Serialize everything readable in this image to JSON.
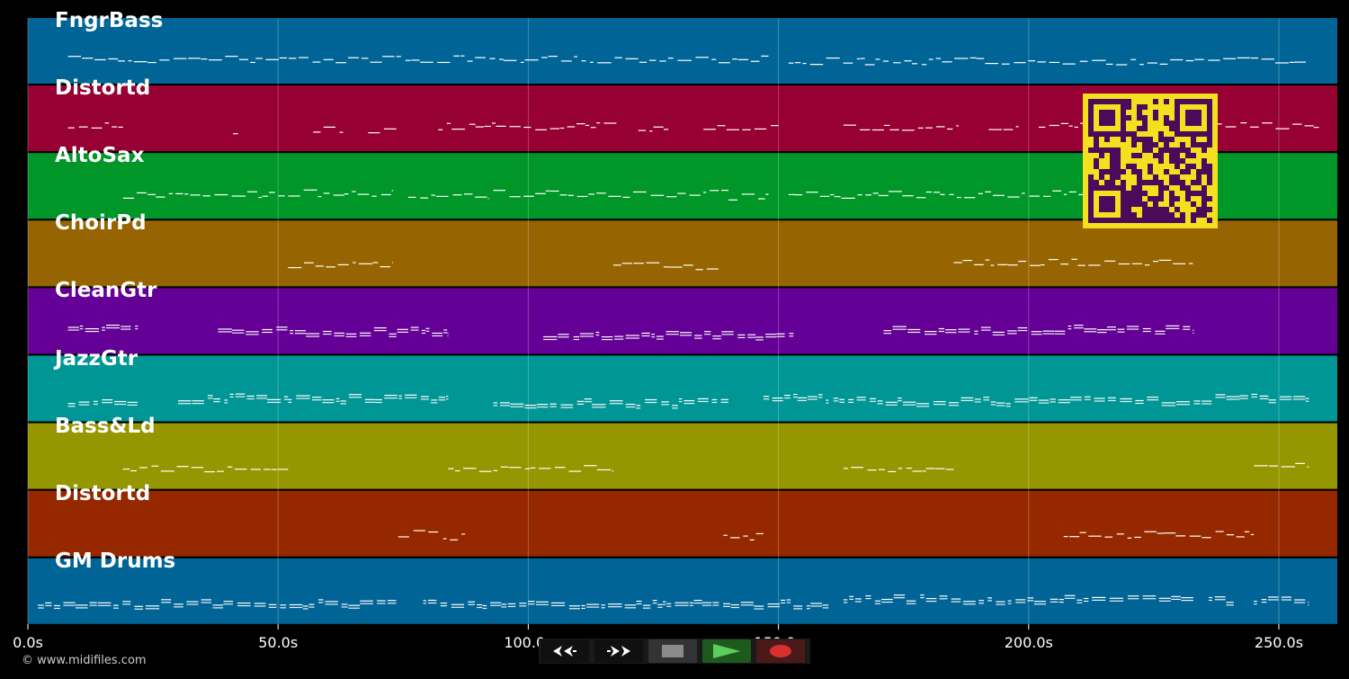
{
  "time_axis": {
    "unit": "s",
    "max": 261.7,
    "ticks": [
      {
        "value": 0,
        "label": "0.0s"
      },
      {
        "value": 50,
        "label": "50.0s"
      },
      {
        "value": 100,
        "label": "100.0s"
      },
      {
        "value": 150,
        "label": "150.0s"
      },
      {
        "value": 200,
        "label": "200.0s"
      },
      {
        "value": 250,
        "label": "250.0s"
      }
    ]
  },
  "tracks": [
    {
      "name": "FngrBass",
      "color": "#006496",
      "notes": [
        [
          8,
          18
        ],
        [
          18,
          148
        ],
        [
          152,
          256
        ]
      ]
    },
    {
      "name": "Distortd",
      "color": "#960032",
      "notes": [
        [
          8,
          19
        ],
        [
          41,
          42
        ],
        [
          57,
          63
        ],
        [
          68,
          74
        ],
        [
          82,
          118
        ],
        [
          122,
          128
        ],
        [
          135,
          150
        ],
        [
          163,
          186
        ],
        [
          192,
          198
        ],
        [
          202,
          258
        ]
      ]
    },
    {
      "name": "AltoSax",
      "color": "#009628",
      "notes": [
        [
          19,
          52
        ],
        [
          52,
          73
        ],
        [
          76,
          92
        ],
        [
          93,
          140
        ],
        [
          140,
          148
        ],
        [
          152,
          170
        ],
        [
          170,
          225
        ]
      ]
    },
    {
      "name": "ChoirPd",
      "color": "#966400",
      "notes": [
        [
          52,
          73
        ],
        [
          117,
          138
        ],
        [
          185,
          233
        ]
      ]
    },
    {
      "name": "CleanGtr",
      "color": "#640096",
      "notes": [
        [
          8,
          22
        ],
        [
          38,
          84
        ],
        [
          103,
          153
        ],
        [
          171,
          233
        ]
      ]
    },
    {
      "name": "JazzGtr",
      "color": "#009696",
      "notes": [
        [
          8,
          22
        ],
        [
          30,
          52
        ],
        [
          52,
          84
        ],
        [
          93,
          140
        ],
        [
          147,
          160
        ],
        [
          161,
          233
        ],
        [
          233,
          256
        ]
      ]
    },
    {
      "name": "Bass&Ld",
      "color": "#969600",
      "notes": [
        [
          19,
          52
        ],
        [
          84,
          117
        ],
        [
          163,
          185
        ],
        [
          245,
          256
        ]
      ]
    },
    {
      "name": "Distortd",
      "color": "#962800",
      "notes": [
        [
          74,
          82
        ],
        [
          83,
          88
        ],
        [
          139,
          147
        ],
        [
          207,
          245
        ]
      ]
    },
    {
      "name": "GM Drums",
      "color": "#006496",
      "notes": [
        [
          2,
          74
        ],
        [
          79,
          160
        ],
        [
          163,
          233
        ],
        [
          236,
          241
        ],
        [
          245,
          256
        ]
      ]
    }
  ],
  "copyright": "© www.midifiles.com",
  "controls": [
    {
      "name": "rewind",
      "color": "#101010"
    },
    {
      "name": "fast-forward",
      "color": "#101010"
    },
    {
      "name": "stop",
      "color": "#333333"
    },
    {
      "name": "play",
      "color": "#1e5a1e"
    },
    {
      "name": "record",
      "color": "#4a1a1a"
    }
  ],
  "qr": {
    "fg": "#4b0a5a",
    "bg": "#f5e020"
  }
}
